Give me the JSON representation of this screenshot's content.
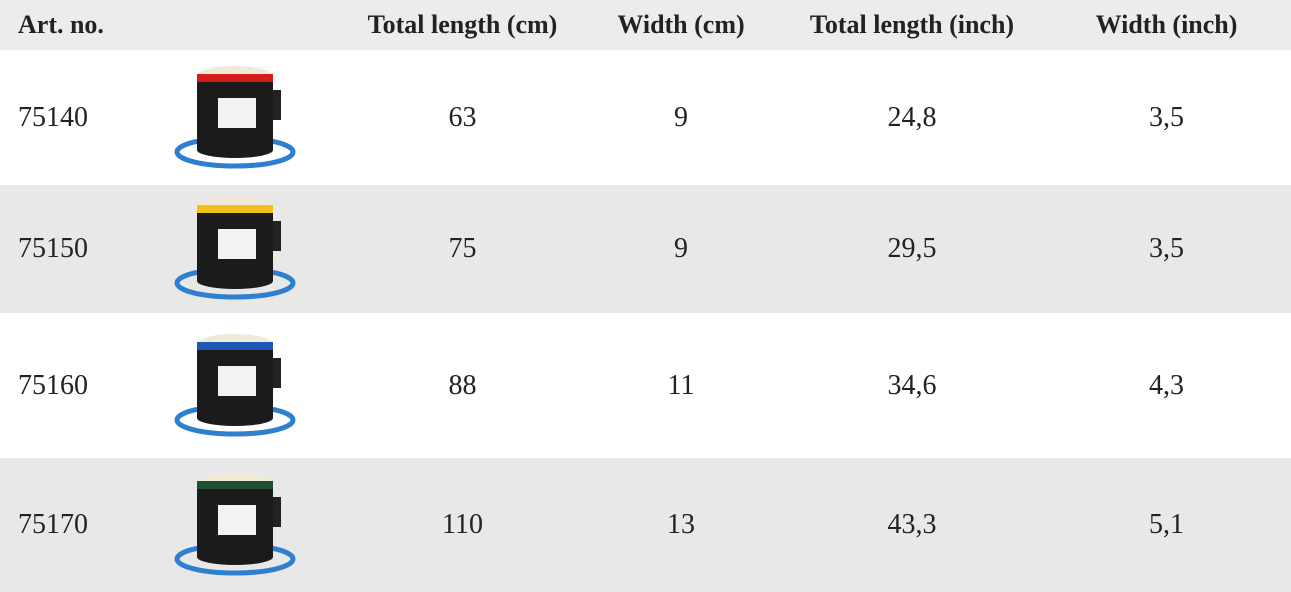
{
  "table": {
    "header": [
      "Art. no.",
      "Total length (cm)",
      "Width (cm)",
      "Total length (inch)",
      "Width (inch)"
    ],
    "rows": [
      [
        "75140",
        "63",
        "9",
        "24,8",
        "3,5"
      ],
      [
        "75150",
        "75",
        "9",
        "29,5",
        "3,5"
      ],
      [
        "75160",
        "88",
        "11",
        "34,6",
        "4,3"
      ],
      [
        "75170",
        "110",
        "13",
        "43,3",
        "5,1"
      ]
    ]
  }
}
